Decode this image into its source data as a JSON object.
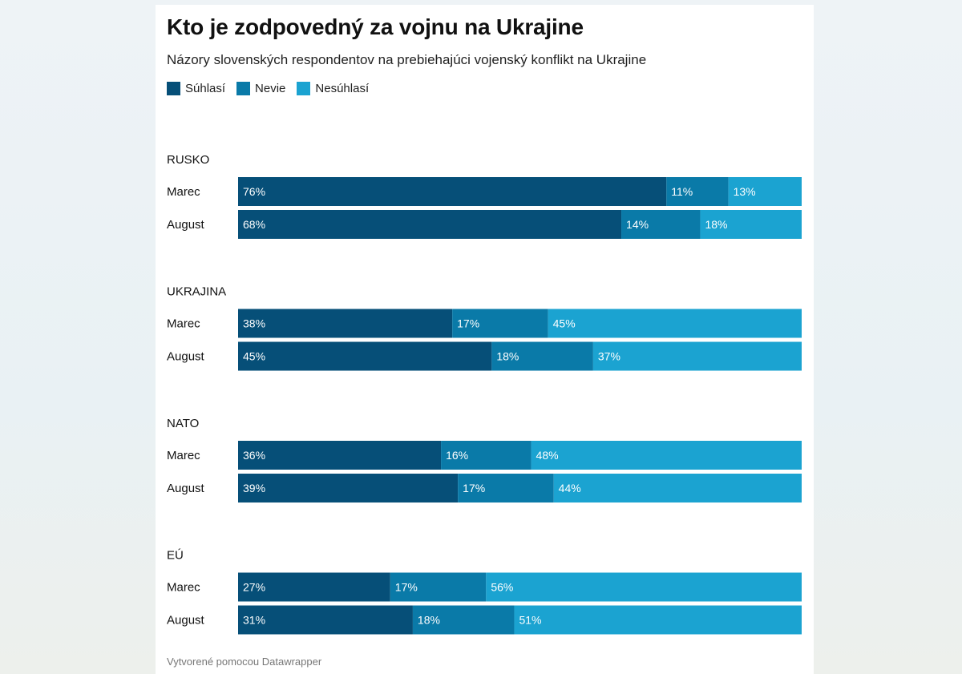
{
  "colors": {
    "suhlasi": "#064f78",
    "nevie": "#0a7aa8",
    "nesuhlasi": "#1ba3d1"
  },
  "footer": "Vytvorené pomocou Datawrapper",
  "chart_data": {
    "type": "bar",
    "stacked": true,
    "orientation": "horizontal",
    "title": "Kto je zodpovedný za vojnu na Ukrajine",
    "subtitle": "Názory slovenských respondentov na prebiehajúci vojenský konflikt na Ukrajine",
    "unit": "%",
    "legend": [
      "Súhlasí",
      "Nevie",
      "Nesúhlasí"
    ],
    "legend_position": "top-left",
    "groups": [
      {
        "label": "RUSKO",
        "rows": [
          {
            "label": "Marec",
            "values": [
              76,
              11,
              13
            ]
          },
          {
            "label": "August",
            "values": [
              68,
              14,
              18
            ]
          }
        ]
      },
      {
        "label": "UKRAJINA",
        "rows": [
          {
            "label": "Marec",
            "values": [
              38,
              17,
              45
            ]
          },
          {
            "label": "August",
            "values": [
              45,
              18,
              37
            ]
          }
        ]
      },
      {
        "label": "NATO",
        "rows": [
          {
            "label": "Marec",
            "values": [
              36,
              16,
              48
            ]
          },
          {
            "label": "August",
            "values": [
              39,
              17,
              44
            ]
          }
        ]
      },
      {
        "label": "EÚ",
        "rows": [
          {
            "label": "Marec",
            "values": [
              27,
              17,
              56
            ]
          },
          {
            "label": "August",
            "values": [
              31,
              18,
              51
            ]
          }
        ]
      }
    ]
  }
}
